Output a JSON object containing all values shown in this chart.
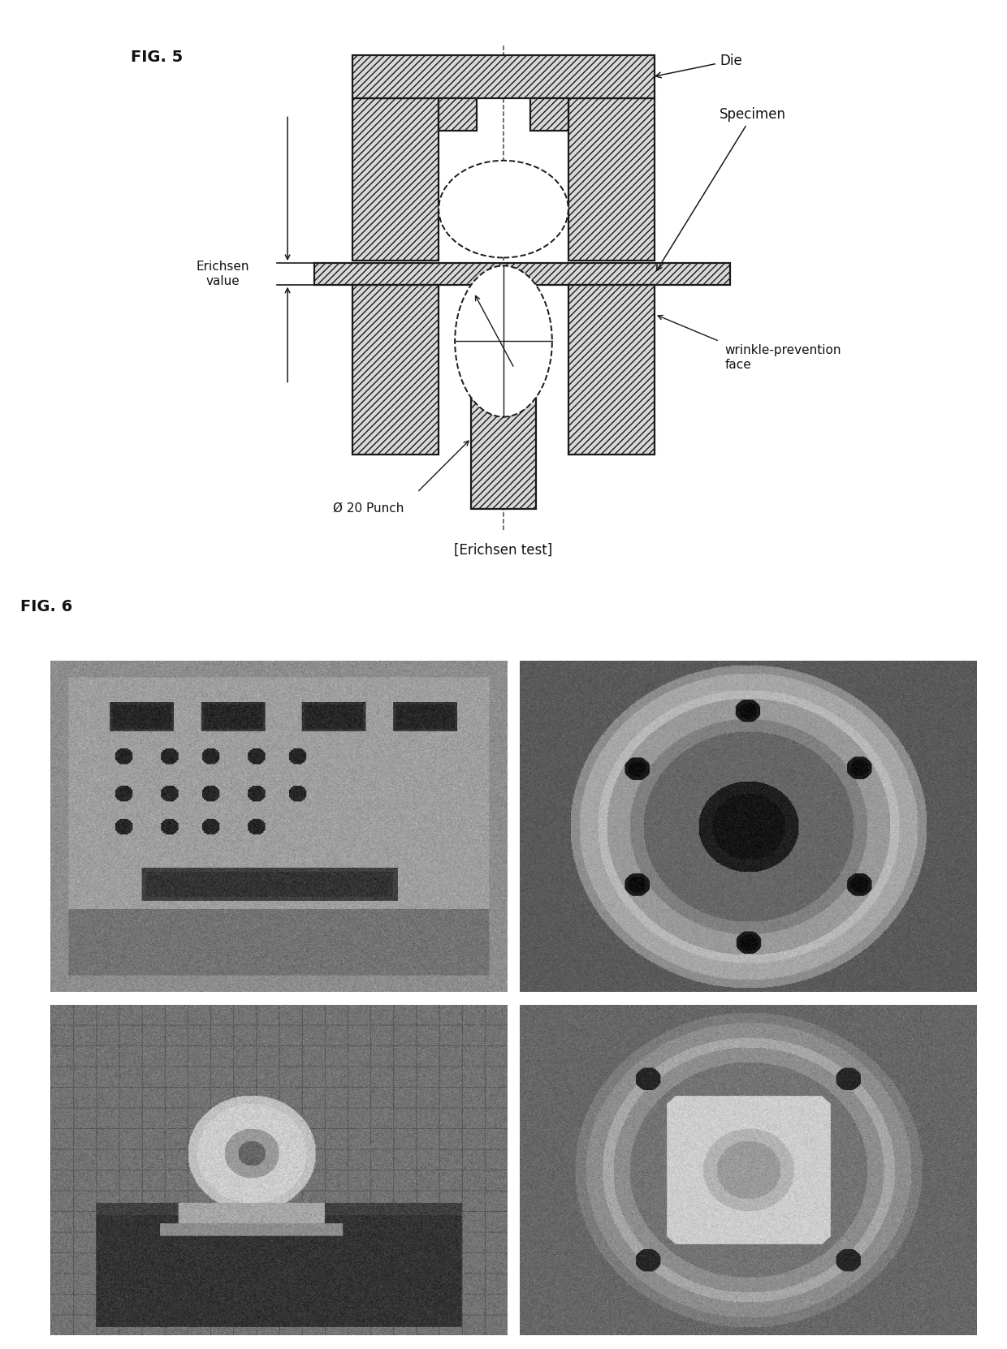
{
  "fig5_label": "FIG. 5",
  "fig6_label": "FIG. 6",
  "erichsen_test_label": "[Erichsen test]",
  "punch_label": "Ø 20 Punch",
  "die_label": "Die",
  "specimen_label": "Specimen",
  "wrinkle_label": "wrinkle-prevention\nface",
  "erichsen_value_label": "Erichsen\nvalue",
  "bg_color": "#ffffff",
  "line_color": "#1a1a1a",
  "label_color": "#111111",
  "hatch_fc": "#d8d8d8"
}
